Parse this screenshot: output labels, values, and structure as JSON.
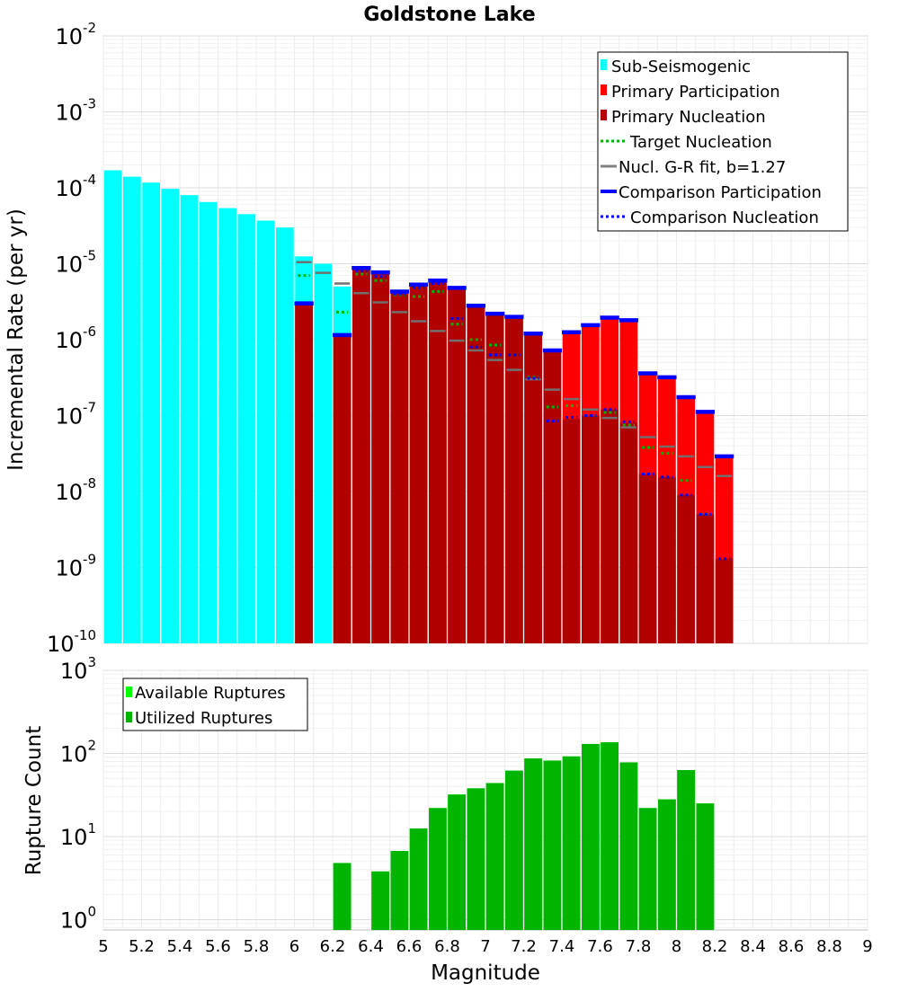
{
  "chart_data": [
    {
      "type": "bar",
      "title": "Goldstone Lake",
      "xlabel": "",
      "ylabel": "Incremental Rate (per yr)",
      "xlim": [
        5,
        9
      ],
      "ylim": [
        1e-10,
        0.01
      ],
      "yscale": "log",
      "ytick_exponents": [
        "-10",
        "-9",
        "-8",
        "-7",
        "-6",
        "-5",
        "-4",
        "-3",
        "-2"
      ],
      "ytick_base": "10",
      "legend_position": "top-right",
      "legend": [
        {
          "label": "Sub-Seismogenic",
          "color": "#00ffff",
          "style": "box"
        },
        {
          "label": "Primary Participation",
          "color": "#ff0000",
          "style": "box"
        },
        {
          "label": "Primary Nucleation",
          "color": "#b00000",
          "style": "box"
        },
        {
          "label": "Target Nucleation",
          "color": "#00b400",
          "style": "dotted"
        },
        {
          "label": "Nucl. G-R fit, b=1.27",
          "color": "#808080",
          "style": "solid"
        },
        {
          "label": "Comparison Participation",
          "color": "#0000ff",
          "style": "thick"
        },
        {
          "label": "Comparison Nucleation",
          "color": "#0000ff",
          "style": "dotted"
        }
      ],
      "bin_width": 0.1,
      "sub_seismogenic": {
        "x": [
          5.05,
          5.15,
          5.25,
          5.35,
          5.45,
          5.55,
          5.65,
          5.75,
          5.85,
          5.95,
          6.05,
          6.15,
          6.25
        ],
        "values": [
          0.00017,
          0.00014,
          0.000117,
          9.7e-05,
          8e-05,
          6.5e-05,
          5.4e-05,
          4.5e-05,
          3.7e-05,
          3e-05,
          1.25e-05,
          1e-05,
          5e-06
        ]
      },
      "participation": {
        "x": [
          6.05,
          6.25,
          6.35,
          6.45,
          6.55,
          6.65,
          6.75,
          6.85,
          6.95,
          7.05,
          7.15,
          7.25,
          7.35,
          7.45,
          7.55,
          7.65,
          7.75,
          7.85,
          7.95,
          8.05,
          8.15,
          8.25
        ],
        "values": [
          2.9e-06,
          1.1e-06,
          8.5e-06,
          7.5e-06,
          4.2e-06,
          5.2e-06,
          5.9e-06,
          4.7e-06,
          2.7e-06,
          2.1e-06,
          1.9e-06,
          1.15e-06,
          7e-07,
          1.2e-06,
          1.5e-06,
          1.9e-06,
          1.75e-06,
          3.5e-07,
          3.1e-07,
          1.7e-07,
          1.1e-07,
          2.8e-08
        ]
      },
      "nucleation": {
        "x": [
          6.05,
          6.25,
          6.35,
          6.45,
          6.55,
          6.65,
          6.75,
          6.85,
          6.95,
          7.05,
          7.15,
          7.25,
          7.35,
          7.45,
          7.55,
          7.65,
          7.75,
          7.85,
          7.95,
          8.05,
          8.15,
          8.25
        ],
        "values": [
          2.9e-06,
          1.1e-06,
          8.5e-06,
          7.5e-06,
          4.2e-06,
          5.2e-06,
          5.9e-06,
          4.7e-06,
          2.7e-06,
          2.1e-06,
          1.9e-06,
          1.15e-06,
          7e-07,
          9e-08,
          1e-07,
          1.2e-07,
          8e-08,
          1.7e-08,
          1.55e-08,
          9e-09,
          5e-09,
          1.3e-09
        ]
      },
      "target_nucleation": {
        "x": [
          6.05,
          6.25,
          6.35,
          6.45,
          6.55,
          6.65,
          6.75,
          6.85,
          6.95,
          7.05,
          7.15,
          7.25,
          7.35,
          7.45,
          7.55,
          7.65,
          7.75,
          7.85,
          7.95,
          8.05,
          8.15,
          8.25
        ],
        "values": [
          7e-06,
          2.3e-06,
          7.3e-06,
          6e-06,
          3.9e-06,
          3.7e-06,
          4.3e-06,
          1.6e-06,
          1e-06,
          8.5e-07,
          6.3e-07,
          3.2e-07,
          1.3e-07,
          1.35e-07,
          1e-07,
          1.1e-07,
          7.5e-08,
          3.8e-08,
          3.2e-08,
          1.4e-08,
          5e-09,
          1.3e-09
        ]
      },
      "gr_fit": {
        "x": [
          6.05,
          6.15,
          6.25,
          6.35,
          6.45,
          6.55,
          6.65,
          6.75,
          6.85,
          6.95,
          7.05,
          7.15,
          7.25,
          7.35,
          7.45,
          7.55,
          7.65,
          7.75,
          7.85,
          7.95,
          8.05,
          8.15,
          8.25
        ],
        "values": [
          1.05e-05,
          7.6e-06,
          5.5e-06,
          4.1e-06,
          3.1e-06,
          2.3e-06,
          1.75e-06,
          1.3e-06,
          9.7e-07,
          7.2e-07,
          5.4e-07,
          4e-07,
          3e-07,
          2.2e-07,
          1.65e-07,
          1.2e-07,
          9.3e-08,
          7e-08,
          5.2e-08,
          3.9e-08,
          2.9e-08,
          2.1e-08,
          1.6e-08
        ]
      },
      "comparison_participation": {
        "x": [
          6.05,
          6.25,
          6.35,
          6.45,
          6.55,
          6.65,
          6.75,
          6.85,
          6.95,
          7.05,
          7.15,
          7.25,
          7.35,
          7.45,
          7.55,
          7.65,
          7.75,
          7.85,
          7.95,
          8.05,
          8.15,
          8.25
        ],
        "values": [
          3e-06,
          1.15e-06,
          8.8e-06,
          7.7e-06,
          4.3e-06,
          5.3e-06,
          6e-06,
          4.8e-06,
          2.8e-06,
          2.2e-06,
          2e-06,
          1.2e-06,
          7.2e-07,
          1.25e-06,
          1.55e-06,
          1.95e-06,
          1.8e-06,
          3.6e-07,
          3.2e-07,
          1.75e-07,
          1.12e-07,
          2.9e-08
        ]
      },
      "comparison_nucleation": {
        "x": [
          6.35,
          6.45,
          6.55,
          6.65,
          6.75,
          6.85,
          6.95,
          7.05,
          7.15,
          7.25,
          7.35,
          7.45,
          7.55,
          7.65,
          7.75,
          7.85,
          7.95,
          8.05,
          8.15,
          8.25
        ],
        "values": [
          8e-06,
          6.8e-06,
          4e-06,
          4.8e-06,
          5.5e-06,
          1.9e-06,
          8e-07,
          6.3e-07,
          6.3e-07,
          3.1e-07,
          8.5e-08,
          9.5e-08,
          1e-07,
          1.2e-07,
          8.3e-08,
          1.7e-08,
          1.55e-08,
          9e-09,
          5e-09,
          1.3e-09
        ]
      }
    },
    {
      "type": "bar",
      "xlabel": "Magnitude",
      "ylabel": "Rupture Count",
      "xlim": [
        5,
        9
      ],
      "ylim": [
        0.75,
        1000
      ],
      "yscale": "log",
      "ytick_exponents": [
        "0",
        "1",
        "2",
        "3"
      ],
      "ytick_base": "10",
      "xticks": [
        "5",
        "5.2",
        "5.4",
        "5.6",
        "5.8",
        "6",
        "6.2",
        "6.4",
        "6.6",
        "6.8",
        "7",
        "7.2",
        "7.4",
        "7.6",
        "7.8",
        "8",
        "8.2",
        "8.4",
        "8.6",
        "8.8",
        "9"
      ],
      "legend_position": "top-left",
      "legend": [
        {
          "label": "Available Ruptures",
          "color": "#00ff00",
          "style": "box"
        },
        {
          "label": "Utilized Ruptures",
          "color": "#00b400",
          "style": "box"
        }
      ],
      "bin_width": 0.1,
      "available": {
        "x": [
          6.25,
          6.45,
          6.55,
          6.65,
          6.75,
          6.85,
          6.95,
          7.05,
          7.15,
          7.25,
          7.35,
          7.45,
          7.55,
          7.65,
          7.75,
          7.85,
          7.95,
          8.05,
          8.15
        ],
        "values": [
          4.8,
          3.8,
          6.7,
          12.5,
          22,
          32,
          38,
          44,
          62,
          87,
          82,
          92,
          130,
          136,
          78,
          22,
          28,
          63,
          25
        ]
      },
      "utilized": {
        "x": [
          6.25,
          6.45,
          6.55,
          6.65,
          6.75,
          6.85,
          6.95,
          7.05,
          7.15,
          7.25,
          7.35,
          7.45,
          7.55,
          7.65,
          7.75,
          7.85,
          7.95,
          8.05,
          8.15
        ],
        "values": [
          4.8,
          3.8,
          6.7,
          12.5,
          22,
          32,
          38,
          44,
          62,
          87,
          82,
          92,
          130,
          136,
          78,
          22,
          28,
          63,
          25
        ]
      }
    }
  ]
}
